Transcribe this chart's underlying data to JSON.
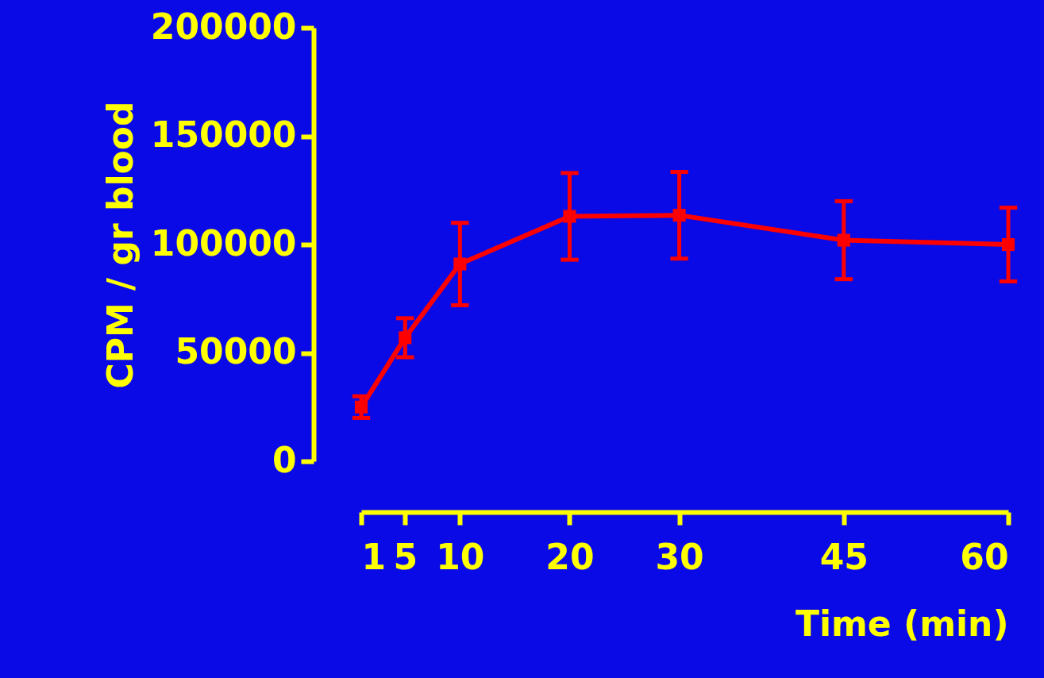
{
  "chart_data": {
    "type": "line",
    "xlabel": "Time (min)",
    "ylabel": "CPM / gr blood",
    "x": [
      1,
      5,
      10,
      20,
      30,
      45,
      60
    ],
    "series": [
      {
        "color": "#ff0000",
        "values": [
          25000,
          57000,
          91000,
          113000,
          113500,
          102000,
          100000
        ],
        "errors": [
          5000,
          9000,
          19000,
          20000,
          20000,
          18000,
          17000
        ]
      }
    ],
    "xlim": [
      1,
      60
    ],
    "xticks": [
      1,
      5,
      10,
      20,
      30,
      45,
      60
    ],
    "ylim": [
      0,
      200000
    ],
    "yticks": [
      0,
      50000,
      100000,
      150000,
      200000
    ],
    "marker": "square",
    "line_style": "solid",
    "grid": false
  }
}
